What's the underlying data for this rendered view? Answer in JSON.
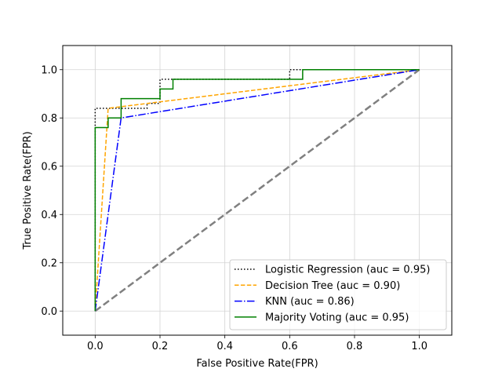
{
  "chart_data": {
    "type": "line",
    "title": "",
    "xlabel": "False Positive Rate(FPR)",
    "ylabel": "True Positive Rate(FPR)",
    "xlim": [
      -0.1,
      1.1
    ],
    "ylim": [
      -0.1,
      1.1
    ],
    "xticks": [
      0.0,
      0.2,
      0.4,
      0.6,
      0.8,
      1.0
    ],
    "yticks": [
      0.0,
      0.2,
      0.4,
      0.6,
      0.8,
      1.0
    ],
    "tick_labels_x": [
      "0.0",
      "0.2",
      "0.4",
      "0.6",
      "0.8",
      "1.0"
    ],
    "tick_labels_y": [
      "0.0",
      "0.2",
      "0.4",
      "0.6",
      "0.8",
      "1.0"
    ],
    "grid": true,
    "legend_position": "lower-right",
    "series": [
      {
        "name": "Logistic Regression (auc = 0.95)",
        "color": "#000000",
        "style": "dotted",
        "x": [
          0,
          0,
          0,
          0.04,
          0.04,
          0.16,
          0.16,
          0.2,
          0.2,
          0.24,
          0.24,
          0.6,
          0.6,
          0.64,
          0.64,
          1.0
        ],
        "y": [
          0,
          0.8,
          0.84,
          0.84,
          0.84,
          0.84,
          0.86,
          0.86,
          0.96,
          0.96,
          0.96,
          0.96,
          1.0,
          1.0,
          1.0,
          1.0
        ]
      },
      {
        "name": "Decision Tree (auc = 0.90)",
        "color": "#ffa500",
        "style": "dashed",
        "x": [
          0,
          0.04,
          1.0
        ],
        "y": [
          0,
          0.84,
          1.0
        ]
      },
      {
        "name": "KNN (auc = 0.86)",
        "color": "#0000ff",
        "style": "dashdot",
        "x": [
          0,
          0.08,
          1.0
        ],
        "y": [
          0,
          0.8,
          1.0
        ]
      },
      {
        "name": "Majority Voting (auc = 0.95)",
        "color": "#008000",
        "style": "solid",
        "x": [
          0,
          0,
          0.04,
          0.04,
          0.08,
          0.08,
          0.2,
          0.2,
          0.24,
          0.24,
          0.64,
          0.64,
          1.0
        ],
        "y": [
          0,
          0.76,
          0.76,
          0.8,
          0.8,
          0.88,
          0.88,
          0.92,
          0.92,
          0.96,
          0.96,
          1.0,
          1.0
        ]
      },
      {
        "name": "",
        "color": "#808080",
        "style": "dashed-thick",
        "x": [
          0,
          1
        ],
        "y": [
          0,
          1
        ]
      }
    ]
  }
}
